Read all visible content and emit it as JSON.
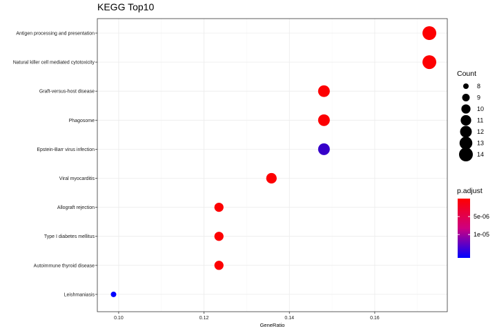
{
  "chart_data": {
    "type": "scatter",
    "title": "KEGG Top10",
    "xlabel": "GeneRatio",
    "ylabel": "",
    "xlim": [
      0.095,
      0.177
    ],
    "x_ticks": [
      0.1,
      0.12,
      0.14,
      0.16
    ],
    "x_tick_labels": [
      "0.10",
      "0.12",
      "0.14",
      "0.16"
    ],
    "grid": true,
    "points": [
      {
        "term": "Antigen processing and presentation",
        "gene_ratio": 0.1728,
        "count": 14,
        "p_adjust": 1e-07
      },
      {
        "term": "Natural killer cell mediated cytotoxicity",
        "gene_ratio": 0.1728,
        "count": 14,
        "p_adjust": 1e-07
      },
      {
        "term": "Graft-versus-host disease",
        "gene_ratio": 0.1481,
        "count": 12,
        "p_adjust": 1e-07
      },
      {
        "term": "Phagosome",
        "gene_ratio": 0.1481,
        "count": 12,
        "p_adjust": 2e-07
      },
      {
        "term": "Epstein-Barr virus infection",
        "gene_ratio": 0.1481,
        "count": 12,
        "p_adjust": 1.3e-05
      },
      {
        "term": "Viral myocarditis",
        "gene_ratio": 0.1358,
        "count": 11,
        "p_adjust": 1e-07
      },
      {
        "term": "Allograft rejection",
        "gene_ratio": 0.1235,
        "count": 10,
        "p_adjust": 1e-07
      },
      {
        "term": "Type I diabetes mellitus",
        "gene_ratio": 0.1235,
        "count": 10,
        "p_adjust": 1e-07
      },
      {
        "term": "Autoimmune thyroid disease",
        "gene_ratio": 0.1235,
        "count": 10,
        "p_adjust": 1e-07
      },
      {
        "term": "Leishmaniasis",
        "gene_ratio": 0.0988,
        "count": 8,
        "p_adjust": 1.65e-05
      }
    ],
    "size_legend": {
      "title": "Count",
      "values": [
        8,
        9,
        10,
        11,
        12,
        13,
        14
      ],
      "labels": [
        "8",
        "9",
        "10",
        "11",
        "12",
        "13",
        "14"
      ]
    },
    "color_legend": {
      "title": "p.adjust",
      "range": [
        0,
        1.65e-05
      ],
      "low_color": "#ff0000",
      "high_color": "#0000ff",
      "ticks": [
        5e-06,
        1e-05
      ],
      "tick_labels": [
        "5e-06",
        "1e-05"
      ]
    }
  }
}
